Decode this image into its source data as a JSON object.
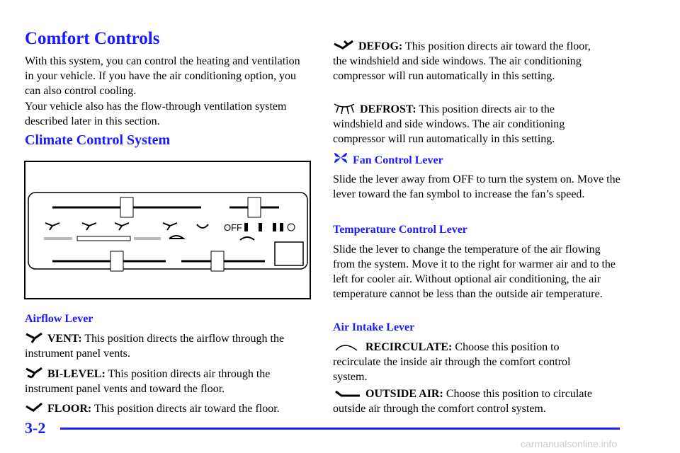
{
  "header": {
    "title": "Comfort Controls"
  },
  "intro": [
    "With this system, you can control the heating and ventilation in your vehicle. If you have the air conditioning option, you can also control cooling.",
    "Your vehicle also has the flow-through ventilation system described later in this section."
  ],
  "section": {
    "heading": "Climate Control System",
    "figure": {
      "off_label": "OFF"
    }
  },
  "airflow": {
    "heading": "Airflow Lever",
    "items": [
      {
        "label": "VENT:",
        "text": "This position directs the airflow through the instrument panel vents."
      },
      {
        "label": "BI-LEVEL:",
        "text": "This position directs air through the instrument panel vents and toward the floor."
      },
      {
        "label": "FLOOR:",
        "text": "This position directs air toward the floor."
      },
      {
        "label": "DEFOG:",
        "text": "This position directs air toward the floor, the windshield and side windows. The air conditioning compressor will run automatically in this setting."
      },
      {
        "label": "DEFROST:",
        "text": "This position directs air to the windshield and side windows. The air conditioning compressor will run automatically in this setting."
      }
    ]
  },
  "fan": {
    "heading": "Fan Control Lever",
    "text": "Slide the lever away from OFF to turn the system on. Move the lever toward the fan symbol to increase the fan’s speed."
  },
  "temperature": {
    "heading": "Temperature Control Lever",
    "text": "Slide the lever to change the temperature of the air flowing from the system. Move it to the right for warmer air and to the left for cooler air. Without optional air conditioning, the air temperature cannot be less than the outside air temperature."
  },
  "intake": {
    "heading": "Air Intake Lever",
    "items": [
      {
        "label": "RECIRCULATE:",
        "text": "Choose this position to recirculate the inside air through the comfort control system."
      },
      {
        "label": "OUTSIDE AIR:",
        "text": "Choose this position to circulate outside air through the comfort control system."
      }
    ]
  },
  "footer": {
    "page": "3-2",
    "watermark": "carmanualsonline.info"
  }
}
